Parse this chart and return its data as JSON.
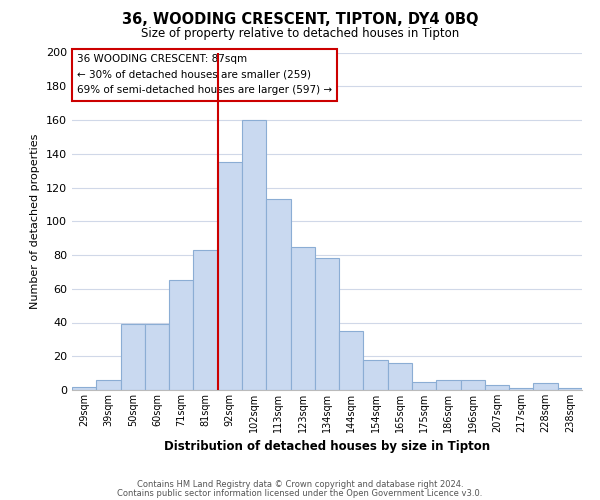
{
  "title": "36, WOODING CRESCENT, TIPTON, DY4 0BQ",
  "subtitle": "Size of property relative to detached houses in Tipton",
  "xlabel": "Distribution of detached houses by size in Tipton",
  "ylabel": "Number of detached properties",
  "bar_labels": [
    "29sqm",
    "39sqm",
    "50sqm",
    "60sqm",
    "71sqm",
    "81sqm",
    "92sqm",
    "102sqm",
    "113sqm",
    "123sqm",
    "134sqm",
    "144sqm",
    "154sqm",
    "165sqm",
    "175sqm",
    "186sqm",
    "196sqm",
    "207sqm",
    "217sqm",
    "228sqm",
    "238sqm"
  ],
  "bar_values": [
    2,
    6,
    39,
    39,
    65,
    83,
    135,
    160,
    113,
    85,
    78,
    35,
    18,
    16,
    5,
    6,
    6,
    3,
    1,
    4,
    1
  ],
  "bar_color": "#c9d9f0",
  "bar_edge_color": "#8badd4",
  "vline_color": "#cc0000",
  "vline_x_idx": 6,
  "ylim": [
    0,
    200
  ],
  "yticks": [
    0,
    20,
    40,
    60,
    80,
    100,
    120,
    140,
    160,
    180,
    200
  ],
  "annotation_title": "36 WOODING CRESCENT: 87sqm",
  "annotation_line1": "← 30% of detached houses are smaller (259)",
  "annotation_line2": "69% of semi-detached houses are larger (597) →",
  "annotation_box_color": "#ffffff",
  "annotation_box_edge": "#cc0000",
  "footer_line1": "Contains HM Land Registry data © Crown copyright and database right 2024.",
  "footer_line2": "Contains public sector information licensed under the Open Government Licence v3.0.",
  "background_color": "#ffffff",
  "grid_color": "#d0d8e8"
}
